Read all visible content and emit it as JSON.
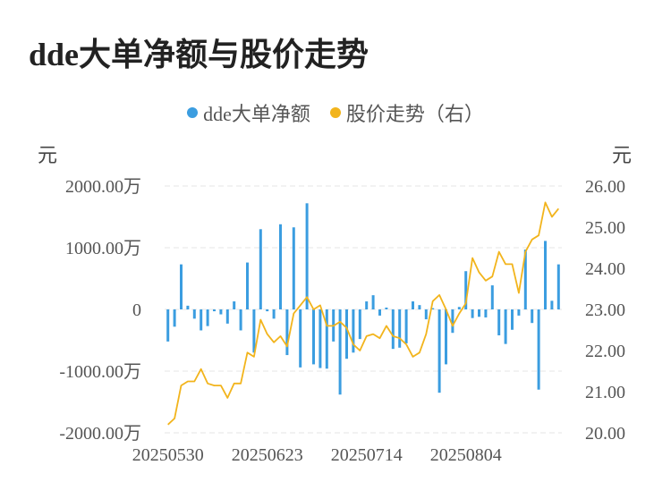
{
  "title": "dde大单净额与股价走势",
  "left_unit": "元",
  "right_unit": "元",
  "colors": {
    "bar": "#3b9de0",
    "line": "#f2b41c",
    "grid": "#e6e6e6"
  },
  "legend": [
    {
      "label": "dde大单净额",
      "color": "#3b9de0"
    },
    {
      "label": "股价走势（右）",
      "color": "#f2b41c"
    }
  ],
  "chart_data": {
    "type": "bar+line",
    "title": "dde大单净额与股价走势",
    "y_left": {
      "ticks": [
        "2000.00万",
        "1000.00万",
        "0",
        "-1000.00万",
        "-2000.00万"
      ],
      "range": [
        -2000,
        2000
      ],
      "unit": "万"
    },
    "y_right": {
      "ticks": [
        "26.00",
        "25.00",
        "24.00",
        "23.00",
        "22.00",
        "21.00",
        "20.00"
      ],
      "range": [
        20,
        26
      ]
    },
    "x_ticks": [
      "20250530",
      "20250623",
      "20250714",
      "20250804"
    ],
    "series": [
      {
        "name": "dde大单净额",
        "type": "bar",
        "values": [
          -520,
          -280,
          730,
          60,
          -150,
          -340,
          -270,
          -30,
          -80,
          -230,
          130,
          -340,
          760,
          -700,
          1300,
          -30,
          -150,
          1380,
          -740,
          1330,
          -940,
          1720,
          -890,
          -950,
          -960,
          -520,
          -1380,
          -800,
          -700,
          -480,
          130,
          230,
          -100,
          30,
          -640,
          -620,
          -550,
          130,
          70,
          -160,
          20,
          -1350,
          -890,
          -380,
          40,
          620,
          -140,
          -120,
          -130,
          390,
          -420,
          -560,
          -330,
          -100,
          970,
          -220,
          -1300,
          1110,
          140,
          730
        ]
      },
      {
        "name": "股价走势（右）",
        "type": "line",
        "values": [
          20.2,
          20.35,
          21.15,
          21.25,
          21.25,
          21.55,
          21.2,
          21.15,
          21.15,
          20.85,
          21.2,
          21.2,
          21.95,
          21.85,
          22.75,
          22.4,
          22.2,
          22.35,
          22.1,
          22.9,
          23.1,
          23.3,
          23.0,
          23.1,
          22.6,
          22.6,
          22.7,
          22.55,
          22.15,
          22.0,
          22.35,
          22.4,
          22.3,
          22.6,
          22.35,
          22.3,
          22.15,
          21.85,
          21.95,
          22.4,
          23.2,
          23.35,
          23.0,
          22.6,
          22.9,
          23.15,
          24.25,
          23.9,
          23.7,
          23.8,
          24.4,
          24.1,
          24.1,
          23.4,
          24.4,
          24.7,
          24.8,
          25.6,
          25.25,
          25.45
        ]
      }
    ],
    "grid": true,
    "legend_position": "top-center"
  }
}
